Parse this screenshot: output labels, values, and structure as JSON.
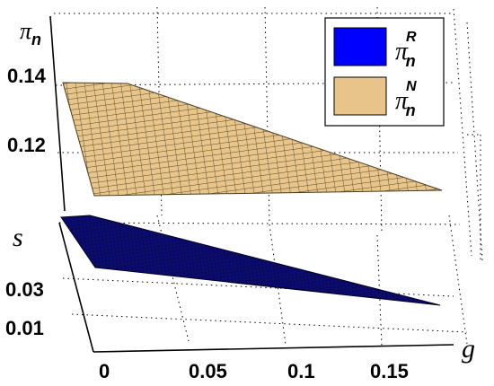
{
  "chart_data": {
    "type": "surface3d",
    "z_axis": {
      "symbol": "π",
      "subscript": "n",
      "ticks": [
        "0.14",
        "0.12"
      ],
      "tick_values": [
        0.14,
        0.12
      ]
    },
    "s_axis": {
      "label": "s",
      "ticks": [
        "0.03",
        "0.01"
      ],
      "tick_values": [
        0.03,
        0.01
      ]
    },
    "g_axis": {
      "label": "g",
      "ticks": [
        "0",
        "0.05",
        "0.1",
        "0.15"
      ],
      "tick_values": [
        0,
        0.05,
        0.1,
        0.15
      ]
    },
    "series": [
      {
        "name": "π_n^R",
        "symbol": "π",
        "superscript": "R",
        "subscript": "n",
        "color": "#0a0a8c",
        "legend_color": "#0000ff",
        "approx_value_range": [
          0.084,
          0.109
        ]
      },
      {
        "name": "π_n^N",
        "symbol": "π",
        "superscript": "N",
        "subscript": "n",
        "color": "#e8c58a",
        "legend_color": "#e8c48a",
        "approx_value_range": [
          0.1,
          0.14
        ]
      }
    ],
    "grid": true,
    "legend_position": "top-right"
  }
}
